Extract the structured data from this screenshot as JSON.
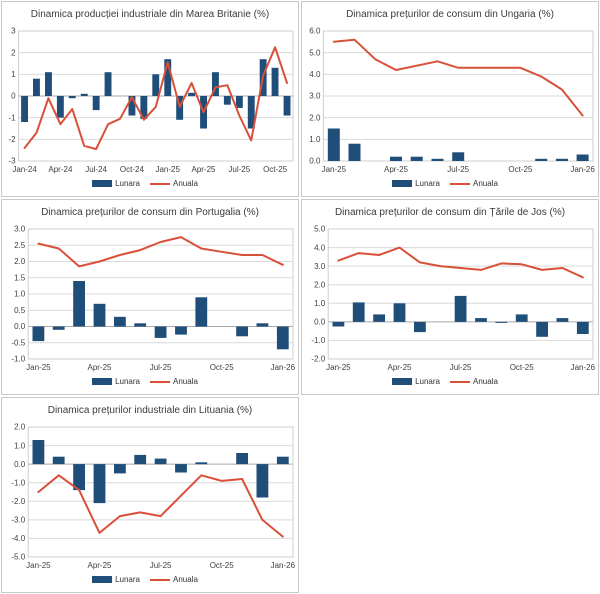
{
  "colors": {
    "bar": "#1f4e79",
    "line": "#d9503a",
    "grid": "#d9d9d9",
    "zero": "#a8a8a8",
    "frame": "#cfcfcf",
    "panel_border": "#c9c9c9",
    "text": "#404040"
  },
  "legend": {
    "lunara": "Lunara",
    "anuala": "Anuala",
    "position": "bottom"
  },
  "chart_data": [
    {
      "id": "uk-industrial-production",
      "type": "bar+line",
      "title": "Dinamica producției industriale din Marea Britanie (%)",
      "categories": [
        "Jan-24",
        "Feb-24",
        "Mar-24",
        "Apr-24",
        "May-24",
        "Jun-24",
        "Jul-24",
        "Aug-24",
        "Sep-24",
        "Oct-24",
        "Nov-24",
        "Dec-24",
        "Jan-25",
        "Feb-25",
        "Mar-25",
        "Apr-25",
        "May-25",
        "Jun-25",
        "Jul-25",
        "Aug-25",
        "Sep-25",
        "Oct-25",
        "Nov-25"
      ],
      "x_ticks": [
        "Jan-24",
        "Apr-24",
        "Jul-24",
        "Oct-24",
        "Jan-25",
        "Apr-25",
        "Jul-25",
        "Oct-25"
      ],
      "ylim": [
        -3,
        3
      ],
      "y_ticks": [
        "3",
        "2",
        "1",
        "0",
        "-1",
        "-2",
        "-3"
      ],
      "grid": true,
      "series": [
        {
          "name": "Lunara",
          "type": "bar",
          "values": [
            -1.2,
            0.8,
            1.1,
            -1.0,
            -0.1,
            0.1,
            -0.65,
            1.1,
            0,
            -0.9,
            -1.05,
            1.0,
            1.7,
            -1.1,
            0.15,
            -1.5,
            1.1,
            -0.4,
            -0.55,
            -1.5,
            1.7,
            1.3,
            -0.9
          ]
        },
        {
          "name": "Anuala",
          "type": "line",
          "values": [
            -2.4,
            -1.7,
            -0.1,
            -1.3,
            -0.6,
            -2.3,
            -2.45,
            -1.3,
            -1.05,
            -0.05,
            -1.1,
            -0.5,
            1.55,
            -0.5,
            0.6,
            -0.75,
            0.4,
            0.5,
            -0.9,
            -2.05,
            0.95,
            2.25,
            0.6
          ]
        }
      ]
    },
    {
      "id": "hungary-consumer-prices",
      "type": "bar+line",
      "title": "Dinamica prețurilor de consum din Ungaria (%)",
      "categories": [
        "Jan-25",
        "Feb-25",
        "Mar-25",
        "Apr-25",
        "May-25",
        "Jun-25",
        "Jul-25",
        "Aug-25",
        "Sep-25",
        "Oct-25",
        "Nov-25",
        "Dec-25",
        "Jan-26"
      ],
      "x_ticks": [
        "Jan-25",
        "Apr-25",
        "Jul-25",
        "Oct-25",
        "Jan-26"
      ],
      "ylim": [
        0,
        6
      ],
      "y_ticks": [
        "6.0",
        "5.0",
        "4.0",
        "3.0",
        "2.0",
        "1.0",
        "0.0"
      ],
      "grid": true,
      "series": [
        {
          "name": "Lunara",
          "type": "bar",
          "values": [
            1.5,
            0.8,
            0,
            0.2,
            0.2,
            0.1,
            0.4,
            0,
            0,
            0,
            0.1,
            0.1,
            0.3
          ]
        },
        {
          "name": "Anuala",
          "type": "line",
          "values": [
            5.5,
            5.6,
            4.7,
            4.2,
            4.4,
            4.6,
            4.3,
            4.3,
            4.3,
            4.3,
            3.9,
            3.3,
            2.1
          ]
        }
      ]
    },
    {
      "id": "portugal-consumer-prices",
      "type": "bar+line",
      "title": "Dinamica prețurilor de consum din Portugalia (%)",
      "categories": [
        "Jan-25",
        "Feb-25",
        "Mar-25",
        "Apr-25",
        "May-25",
        "Jun-25",
        "Jul-25",
        "Aug-25",
        "Sep-25",
        "Oct-25",
        "Nov-25",
        "Dec-25",
        "Jan-26"
      ],
      "x_ticks": [
        "Jan-25",
        "Apr-25",
        "Jul-25",
        "Oct-25",
        "Jan-26"
      ],
      "ylim": [
        -1,
        3
      ],
      "y_ticks": [
        "3.0",
        "2.5",
        "2.0",
        "1.5",
        "1.0",
        "0.5",
        "0.0",
        "-0.5",
        "-1.0"
      ],
      "grid": true,
      "series": [
        {
          "name": "Lunara",
          "type": "bar",
          "values": [
            -0.45,
            -0.1,
            1.4,
            0.7,
            0.3,
            0.1,
            -0.35,
            -0.25,
            0.9,
            0,
            -0.3,
            0.1,
            -0.7
          ]
        },
        {
          "name": "Anuala",
          "type": "line",
          "values": [
            2.55,
            2.4,
            1.85,
            2.0,
            2.2,
            2.35,
            2.6,
            2.75,
            2.4,
            2.3,
            2.2,
            2.2,
            1.9
          ]
        }
      ]
    },
    {
      "id": "netherlands-consumer-prices",
      "type": "bar+line",
      "title": "Dinamica prețurilor de consum din Țările de Jos (%)",
      "categories": [
        "Jan-25",
        "Feb-25",
        "Mar-25",
        "Apr-25",
        "May-25",
        "Jun-25",
        "Jul-25",
        "Aug-25",
        "Sep-25",
        "Oct-25",
        "Nov-25",
        "Dec-25",
        "Jan-26"
      ],
      "x_ticks": [
        "Jan-25",
        "Apr-25",
        "Jul-25",
        "Oct-25",
        "Jan-26"
      ],
      "ylim": [
        -2,
        5
      ],
      "y_ticks": [
        "5.0",
        "4.0",
        "3.0",
        "2.0",
        "1.0",
        "0.0",
        "-1.0",
        "-2.0"
      ],
      "grid": true,
      "series": [
        {
          "name": "Lunara",
          "type": "bar",
          "values": [
            -0.25,
            1.05,
            0.4,
            1.0,
            -0.55,
            0,
            1.4,
            0.2,
            -0.05,
            0.4,
            -0.8,
            0.2,
            -0.65
          ]
        },
        {
          "name": "Anuala",
          "type": "line",
          "values": [
            3.3,
            3.7,
            3.6,
            4.0,
            3.2,
            3.0,
            2.9,
            2.8,
            3.15,
            3.1,
            2.8,
            2.9,
            2.4
          ]
        }
      ]
    },
    {
      "id": "lithuania-industrial-prices",
      "type": "bar+line",
      "title": "Dinamica prețurilor industriale din Lituania (%)",
      "categories": [
        "Jan-25",
        "Feb-25",
        "Mar-25",
        "Apr-25",
        "May-25",
        "Jun-25",
        "Jul-25",
        "Aug-25",
        "Sep-25",
        "Oct-25",
        "Nov-25",
        "Dec-25",
        "Jan-26"
      ],
      "x_ticks": [
        "Jan-25",
        "Apr-25",
        "Jul-25",
        "Oct-25",
        "Jan-26"
      ],
      "ylim": [
        -5,
        2
      ],
      "y_ticks": [
        "2.0",
        "1.0",
        "0.0",
        "-1.0",
        "-2.0",
        "-3.0",
        "-4.0",
        "-5.0"
      ],
      "grid": true,
      "series": [
        {
          "name": "Lunara",
          "type": "bar",
          "values": [
            1.3,
            0.4,
            -1.4,
            -2.1,
            -0.5,
            0.5,
            0.3,
            -0.45,
            0.1,
            0,
            0.6,
            -1.8,
            0.4
          ]
        },
        {
          "name": "Anuala",
          "type": "line",
          "values": [
            -1.5,
            -0.6,
            -1.4,
            -3.7,
            -2.8,
            -2.6,
            -2.8,
            -1.7,
            -0.6,
            -0.9,
            -0.8,
            -3.0,
            -3.9
          ]
        }
      ]
    }
  ]
}
